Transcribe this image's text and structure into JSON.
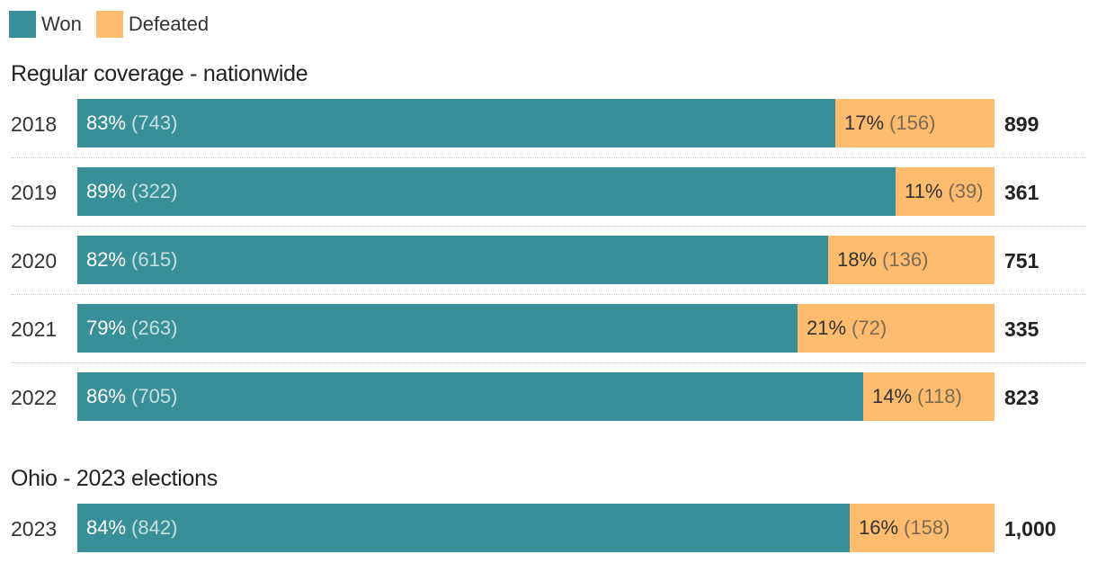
{
  "legend": {
    "won_label": "Won",
    "defeated_label": "Defeated"
  },
  "colors": {
    "won": "#388f98",
    "defeated": "#ffbc6e"
  },
  "chart_data": [
    {
      "type": "bar",
      "stacked": true,
      "orientation": "horizontal",
      "title": "Regular coverage - nationwide",
      "categories": [
        "2018",
        "2019",
        "2020",
        "2021",
        "2022"
      ],
      "series": [
        {
          "name": "Won",
          "percent": [
            83,
            89,
            82,
            79,
            86
          ],
          "values": [
            743,
            322,
            615,
            263,
            705
          ]
        },
        {
          "name": "Defeated",
          "percent": [
            17,
            11,
            18,
            21,
            14
          ],
          "values": [
            156,
            39,
            136,
            72,
            118
          ]
        }
      ],
      "totals": [
        "899",
        "361",
        "751",
        "335",
        "823"
      ]
    },
    {
      "type": "bar",
      "stacked": true,
      "orientation": "horizontal",
      "title": "Ohio - 2023 elections",
      "categories": [
        "2023"
      ],
      "series": [
        {
          "name": "Won",
          "percent": [
            84
          ],
          "values": [
            842
          ]
        },
        {
          "name": "Defeated",
          "percent": [
            16
          ],
          "values": [
            158
          ]
        }
      ],
      "totals": [
        "1,000"
      ]
    }
  ]
}
